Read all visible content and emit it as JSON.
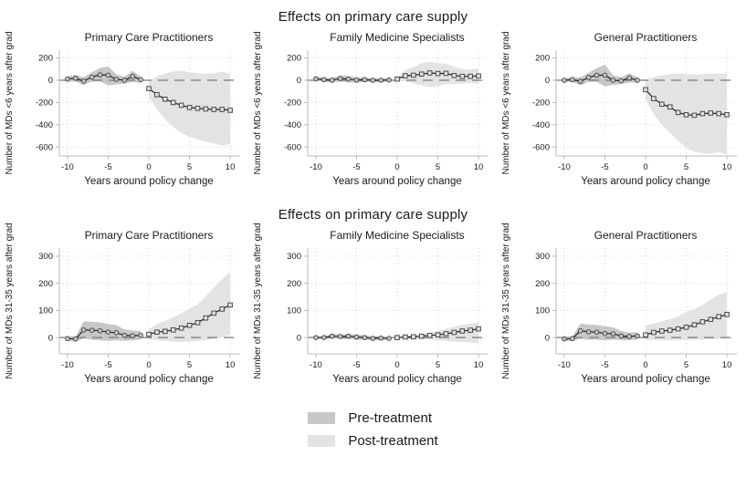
{
  "page_title": "Effects on primary care supply",
  "legend": {
    "items": [
      {
        "label": "Pre-treatment",
        "color": "#c7c7c7"
      },
      {
        "label": "Post-treatment",
        "color": "#e3e3e3"
      }
    ]
  },
  "style": {
    "line_color": "#222222",
    "marker_edge": "#4a4a4a",
    "ref_line_color": "#787878",
    "grid_color": "#d8d8d8",
    "axis_color": "#bbbbbb",
    "text_color": "#1a1a1a",
    "pre_band_color": "#c7c7c7",
    "post_band_color": "#e3e3e3"
  },
  "chart_data": [
    {
      "type": "line",
      "title": "Effects on primary care supply",
      "xlabel": "Years around policy change",
      "ylabel": "Number of MDs <6 years after grad",
      "xlim": [
        -11,
        11
      ],
      "ylim": [
        -680,
        270
      ],
      "xticks": [
        -10,
        -5,
        0,
        5,
        10
      ],
      "yticks": [
        200,
        0,
        -200,
        -400,
        -600
      ],
      "ref_line_y": 0,
      "grid": true,
      "panels": [
        {
          "title": "Primary Care Practitioners",
          "series": [
            {
              "name": "Pre-treatment",
              "marker": "circle",
              "x": [
                -10,
                -9,
                -8,
                -7,
                -6,
                -5,
                -4,
                -3,
                -2,
                -1
              ],
              "y": [
                10,
                18,
                -8,
                28,
                48,
                45,
                8,
                0,
                35,
                5
              ],
              "ci_lower": [
                -15,
                -12,
                -42,
                -12,
                -10,
                -48,
                -38,
                -32,
                -15,
                -22
              ],
              "ci_upper": [
                35,
                48,
                26,
                70,
                110,
                125,
                52,
                32,
                85,
                32
              ]
            },
            {
              "name": "Post-treatment",
              "marker": "square",
              "x": [
                0,
                1,
                2,
                3,
                4,
                5,
                6,
                7,
                8,
                9,
                10
              ],
              "y": [
                -75,
                -130,
                -170,
                -200,
                -225,
                -245,
                -252,
                -258,
                -262,
                -262,
                -270
              ],
              "ci_lower": [
                -150,
                -262,
                -352,
                -420,
                -472,
                -510,
                -532,
                -552,
                -565,
                -588,
                -572
              ],
              "ci_upper": [
                -8,
                35,
                62,
                78,
                86,
                72,
                62,
                58,
                62,
                78,
                55
              ]
            }
          ]
        },
        {
          "title": "Family Medicine Specialists",
          "series": [
            {
              "name": "Pre-treatment",
              "marker": "circle",
              "x": [
                -10,
                -9,
                -8,
                -7,
                -6,
                -5,
                -4,
                -3,
                -2,
                -1
              ],
              "y": [
                12,
                5,
                0,
                15,
                10,
                2,
                5,
                0,
                0,
                2
              ],
              "ci_lower": [
                -8,
                -15,
                -20,
                -12,
                -18,
                -22,
                -15,
                -18,
                -18,
                -14
              ],
              "ci_upper": [
                30,
                25,
                20,
                42,
                38,
                26,
                25,
                18,
                18,
                18
              ]
            },
            {
              "name": "Post-treatment",
              "marker": "square",
              "x": [
                0,
                1,
                2,
                3,
                4,
                5,
                6,
                7,
                8,
                9,
                10
              ],
              "y": [
                10,
                40,
                45,
                55,
                65,
                60,
                62,
                42,
                35,
                35,
                38
              ],
              "ci_lower": [
                -5,
                -12,
                -28,
                -45,
                -62,
                -55,
                -32,
                -35,
                -30,
                -25,
                -30
              ],
              "ci_upper": [
                25,
                92,
                118,
                152,
                168,
                152,
                148,
                120,
                100,
                95,
                105
              ]
            }
          ]
        },
        {
          "title": "General Practitioners",
          "series": [
            {
              "name": "Pre-treatment",
              "marker": "circle",
              "x": [
                -10,
                -9,
                -8,
                -7,
                -6,
                -5,
                -4,
                -3,
                -2,
                -1
              ],
              "y": [
                0,
                5,
                -10,
                25,
                45,
                45,
                0,
                -5,
                20,
                0
              ],
              "ci_lower": [
                -18,
                -15,
                -45,
                -15,
                -15,
                -55,
                -42,
                -35,
                -20,
                -25
              ],
              "ci_upper": [
                18,
                28,
                25,
                68,
                108,
                140,
                45,
                25,
                62,
                25
              ]
            },
            {
              "name": "Post-treatment",
              "marker": "square",
              "x": [
                0,
                1,
                2,
                3,
                4,
                5,
                6,
                7,
                8,
                9,
                10
              ],
              "y": [
                -85,
                -165,
                -215,
                -240,
                -290,
                -310,
                -315,
                -300,
                -295,
                -300,
                -310
              ],
              "ci_lower": [
                -172,
                -305,
                -400,
                -472,
                -545,
                -605,
                -645,
                -655,
                -660,
                -645,
                -670
              ],
              "ci_upper": [
                0,
                28,
                45,
                55,
                62,
                55,
                50,
                55,
                62,
                58,
                62
              ]
            }
          ]
        }
      ]
    },
    {
      "type": "line",
      "title": "Effects on primary care supply",
      "xlabel": "Years around policy change",
      "ylabel": "Number of MDs 31-35 years after grad",
      "xlim": [
        -11,
        11
      ],
      "ylim": [
        -60,
        330
      ],
      "xticks": [
        -10,
        -5,
        0,
        5,
        10
      ],
      "yticks": [
        300,
        200,
        100,
        0
      ],
      "ref_line_y": 0,
      "grid": true,
      "panels": [
        {
          "title": "Primary Care Practitioners",
          "series": [
            {
              "name": "Pre-treatment",
              "marker": "circle",
              "x": [
                -10,
                -9,
                -8,
                -7,
                -6,
                -5,
                -4,
                -3,
                -2,
                -1
              ],
              "y": [
                -4,
                -5,
                28,
                27,
                25,
                20,
                18,
                8,
                7,
                8
              ],
              "ci_lower": [
                -12,
                -15,
                -4,
                -8,
                -10,
                -12,
                -10,
                -12,
                -10,
                -8
              ],
              "ci_upper": [
                5,
                5,
                60,
                58,
                56,
                50,
                46,
                30,
                26,
                25
              ]
            },
            {
              "name": "Post-treatment",
              "marker": "square",
              "x": [
                0,
                1,
                2,
                3,
                4,
                5,
                6,
                7,
                8,
                9,
                10
              ],
              "y": [
                12,
                20,
                23,
                28,
                35,
                45,
                55,
                72,
                90,
                105,
                120
              ],
              "ci_lower": [
                -6,
                -10,
                -12,
                -15,
                -16,
                -16,
                -12,
                -10,
                -5,
                2,
                10
              ],
              "ci_upper": [
                30,
                50,
                60,
                74,
                90,
                106,
                122,
                152,
                185,
                215,
                242
              ]
            }
          ]
        },
        {
          "title": "Family Medicine Specialists",
          "series": [
            {
              "name": "Pre-treatment",
              "marker": "circle",
              "x": [
                -10,
                -9,
                -8,
                -7,
                -6,
                -5,
                -4,
                -3,
                -2,
                -1
              ],
              "y": [
                0,
                0,
                5,
                4,
                5,
                2,
                0,
                -3,
                -2,
                -3
              ],
              "ci_lower": [
                -5,
                -6,
                -3,
                -5,
                -5,
                -8,
                -8,
                -11,
                -9,
                -10
              ],
              "ci_upper": [
                5,
                6,
                13,
                12,
                13,
                11,
                8,
                5,
                5,
                4
              ]
            },
            {
              "name": "Post-treatment",
              "marker": "square",
              "x": [
                0,
                1,
                2,
                3,
                4,
                5,
                6,
                7,
                8,
                9,
                10
              ],
              "y": [
                0,
                2,
                3,
                5,
                8,
                10,
                14,
                19,
                24,
                27,
                32
              ],
              "ci_lower": [
                -3,
                -4,
                -5,
                -6,
                -8,
                -10,
                -12,
                -15,
                -17,
                -18,
                -20
              ],
              "ci_upper": [
                3,
                5,
                8,
                12,
                17,
                24,
                32,
                40,
                47,
                52,
                56
              ]
            }
          ]
        },
        {
          "title": "General Practitioners",
          "series": [
            {
              "name": "Pre-treatment",
              "marker": "circle",
              "x": [
                -10,
                -9,
                -8,
                -7,
                -6,
                -5,
                -4,
                -3,
                -2,
                -1
              ],
              "y": [
                -5,
                -4,
                25,
                21,
                20,
                15,
                14,
                6,
                4,
                6
              ],
              "ci_lower": [
                -13,
                -13,
                -5,
                -8,
                -8,
                -10,
                -8,
                -10,
                -10,
                -8
              ],
              "ci_upper": [
                4,
                5,
                52,
                48,
                47,
                42,
                38,
                24,
                18,
                20
              ]
            },
            {
              "name": "Post-treatment",
              "marker": "square",
              "x": [
                0,
                1,
                2,
                3,
                4,
                5,
                6,
                7,
                8,
                9,
                10
              ],
              "y": [
                10,
                19,
                24,
                27,
                32,
                38,
                47,
                58,
                67,
                77,
                85
              ],
              "ci_lower": [
                -8,
                -10,
                -10,
                -10,
                -10,
                -10,
                -8,
                -8,
                -6,
                -5,
                -4
              ],
              "ci_upper": [
                45,
                52,
                60,
                68,
                78,
                95,
                105,
                120,
                140,
                158,
                168
              ]
            }
          ]
        }
      ]
    }
  ]
}
